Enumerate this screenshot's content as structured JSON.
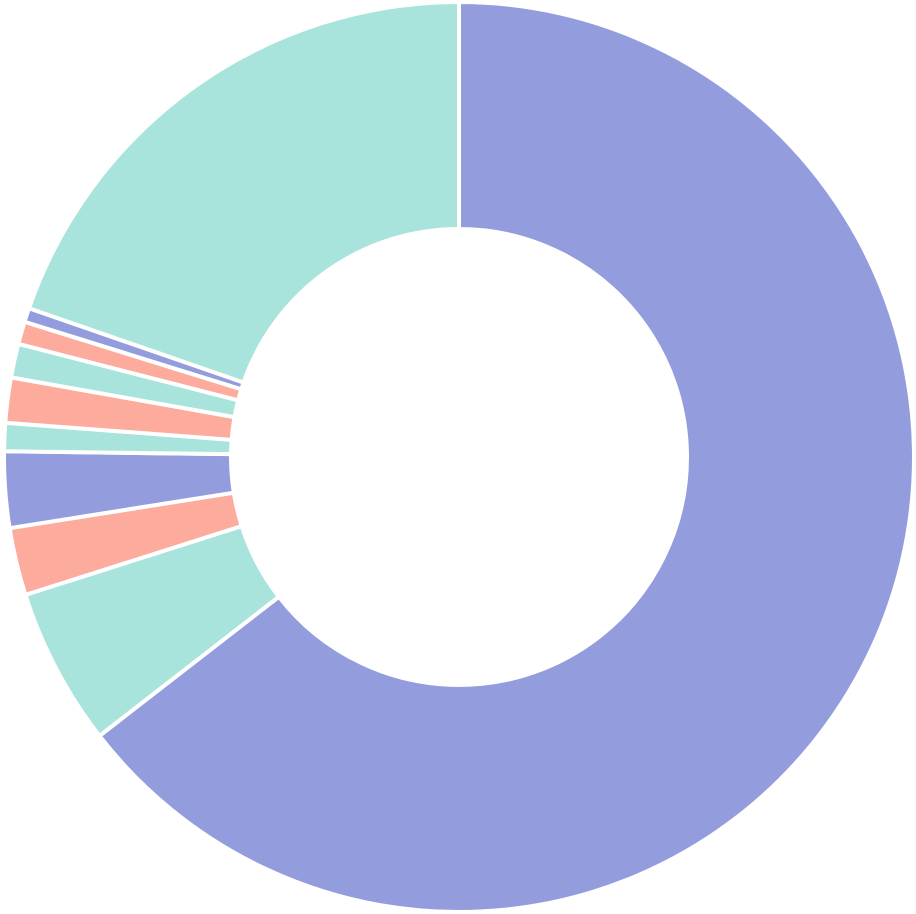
{
  "chart_data": {
    "type": "donut",
    "values": [
      64.5,
      5.6,
      2.4,
      2.7,
      1.0,
      1.6,
      1.2,
      0.8,
      0.5,
      19.7
    ],
    "colors": [
      "#939ddd",
      "#a8e4dc",
      "#fcab9c",
      "#939ddd",
      "#a8e4dc",
      "#fcab9c",
      "#a8e4dc",
      "#fcab9c",
      "#939ddd",
      "#a8e4dc"
    ]
  }
}
